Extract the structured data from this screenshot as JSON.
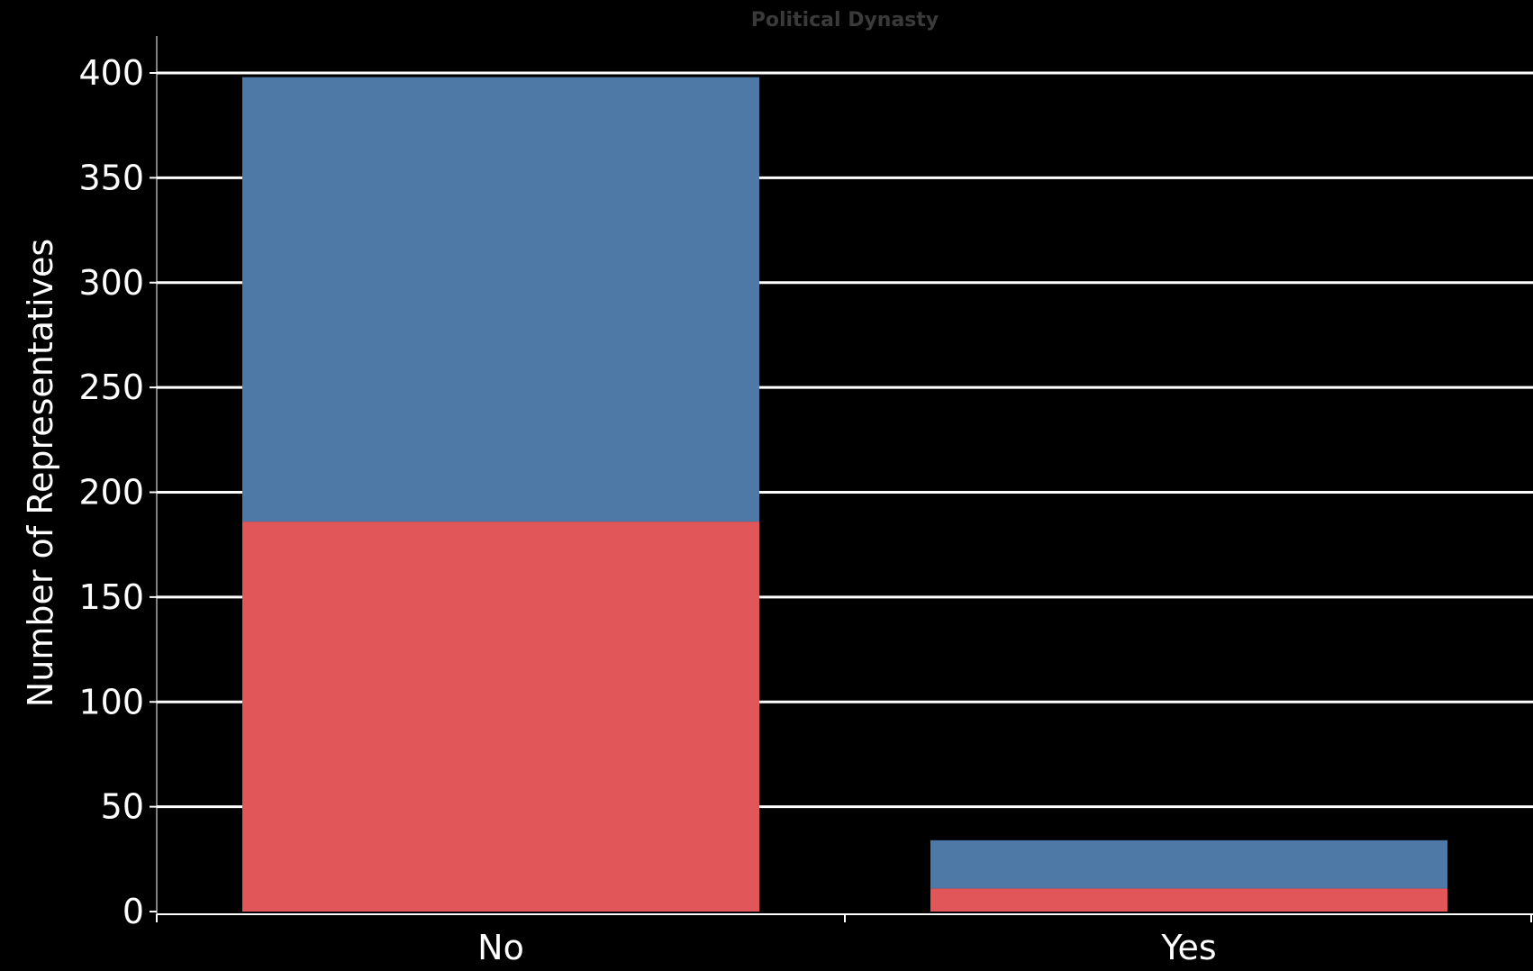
{
  "chart_data": {
    "type": "bar",
    "stacked": true,
    "title": "Political Dynasty",
    "xlabel": "",
    "ylabel": "Number of Representatives",
    "categories": [
      "No",
      "Yes"
    ],
    "series": [
      {
        "color": "#e15759",
        "values": [
          186,
          11
        ]
      },
      {
        "color": "#4e79a7",
        "values": [
          212,
          23
        ]
      }
    ],
    "ylim": [
      0,
      400
    ],
    "yticks": [
      0,
      50,
      100,
      150,
      200,
      250,
      300,
      350,
      400
    ],
    "grid": true,
    "legend": "none"
  },
  "colors": {
    "background": "#000000",
    "grid": "#ffffff",
    "text": "#ffffff",
    "title": "#3a3a3a"
  }
}
